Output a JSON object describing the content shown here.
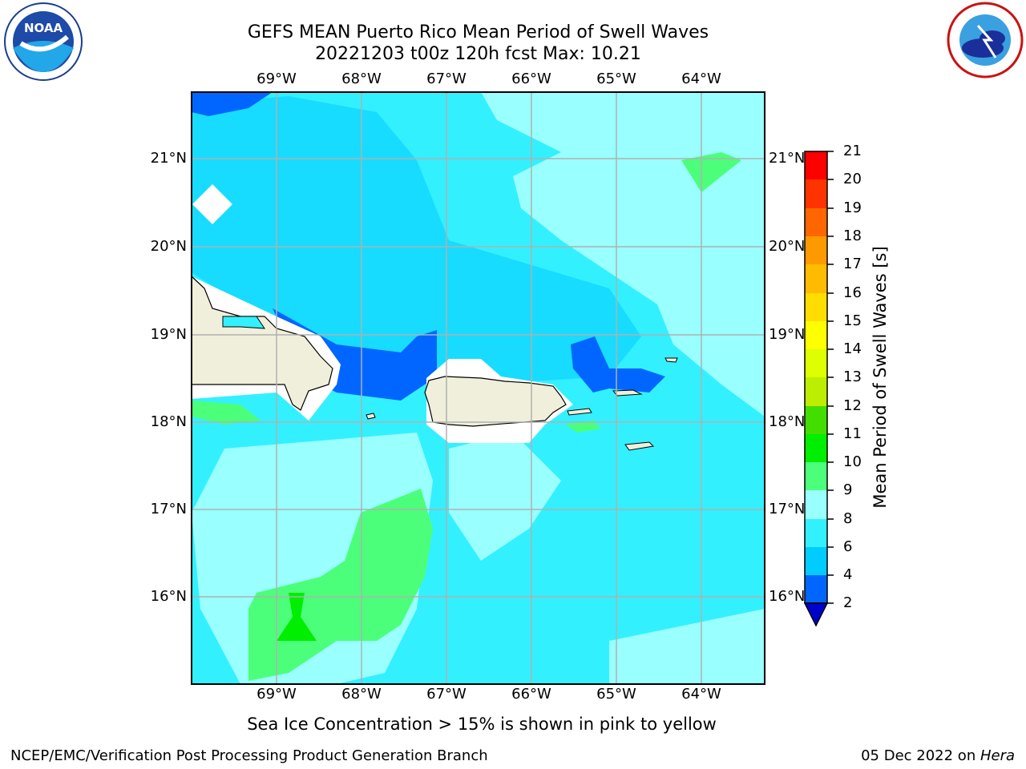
{
  "header": {
    "title_line1": "GEFS MEAN Puerto Rico Mean Period of Swell Waves",
    "title_line2": "20221203 t00z 120h fcst   Max: 10.21"
  },
  "logos": {
    "left": "noaa-logo",
    "right": "nws-logo"
  },
  "map": {
    "lon_labels": [
      "69°W",
      "68°W",
      "67°W",
      "66°W",
      "65°W",
      "64°W"
    ],
    "lat_labels": [
      "21°N",
      "20°N",
      "19°N",
      "18°N",
      "17°N",
      "16°N"
    ]
  },
  "colorbar": {
    "label": "Mean Period of Swell Waves [s]",
    "ticks": [
      "2",
      "4",
      "6",
      "8",
      "9",
      "10",
      "11",
      "12",
      "13",
      "14",
      "15",
      "16",
      "17",
      "18",
      "19",
      "20",
      "21"
    ],
    "colors": [
      "#0000cc",
      "#0066ff",
      "#00ccff",
      "#33f0ff",
      "#99ffff",
      "#4cff7a",
      "#00ee00",
      "#44dd00",
      "#bbee00",
      "#ddff00",
      "#ffff00",
      "#ffdd00",
      "#ffbb00",
      "#ff9900",
      "#ff6600",
      "#ff3300",
      "#ff0000"
    ]
  },
  "footer": {
    "note": "Sea Ice Concentration > 15% is shown in pink to yellow",
    "left": "NCEP/EMC/Verification Post Processing Product Generation Branch",
    "right_date": "05 Dec 2022 on ",
    "right_host": "Hera"
  }
}
